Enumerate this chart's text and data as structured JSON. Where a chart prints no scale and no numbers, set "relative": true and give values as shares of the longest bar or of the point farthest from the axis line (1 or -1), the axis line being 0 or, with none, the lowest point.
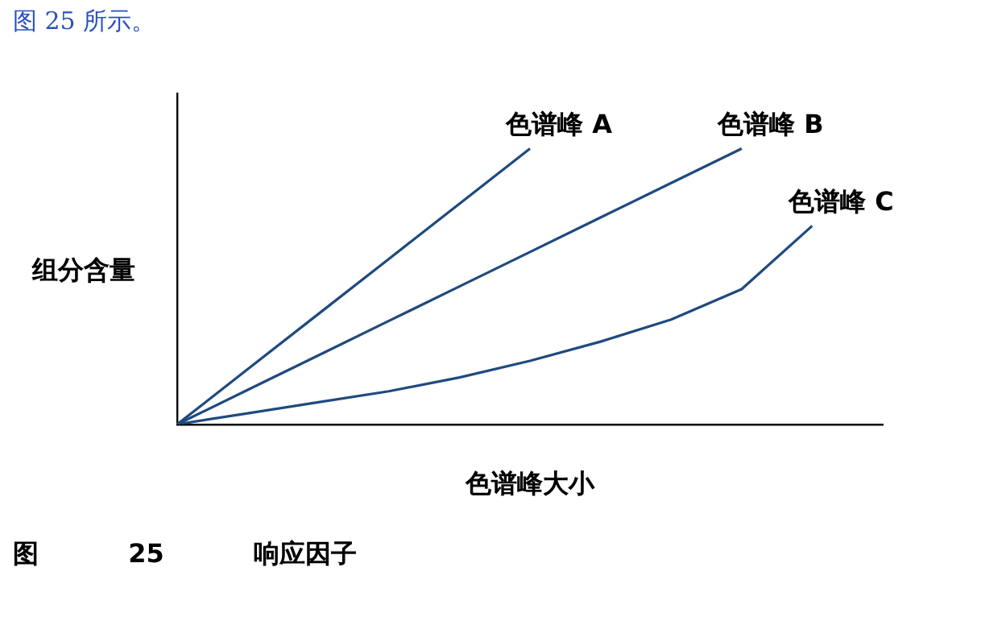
{
  "chart_data": {
    "type": "line",
    "relative": true,
    "xlabel": "色谱峰大小",
    "ylabel": "组分含量",
    "categories": [
      null,
      null,
      null,
      null,
      null,
      null,
      null,
      null,
      null,
      null,
      null
    ],
    "grid": false,
    "legend": false,
    "marker": "none",
    "line_style": "solid",
    "annotations": [
      "图 25 所示。",
      "图 25 响应因子"
    ],
    "series": [
      {
        "name": "色谱峰 A",
        "color": "#1f4a7f",
        "values": [
          0,
          0.2,
          0.4,
          0.6,
          0.8,
          1,
          null,
          null,
          null,
          null,
          null
        ]
      },
      {
        "name": "色谱峰 B",
        "color": "#1f4a7f",
        "values": [
          0,
          0.125,
          0.25,
          0.375,
          0.5,
          0.625,
          0.75,
          0.875,
          1,
          null,
          null
        ]
      },
      {
        "name": "色谱峰 C",
        "color": "#1f4a7f",
        "values": [
          0,
          0.04,
          0.08,
          0.12,
          0.17,
          0.23,
          0.3,
          0.38,
          0.49,
          0.72,
          null
        ]
      }
    ]
  }
}
